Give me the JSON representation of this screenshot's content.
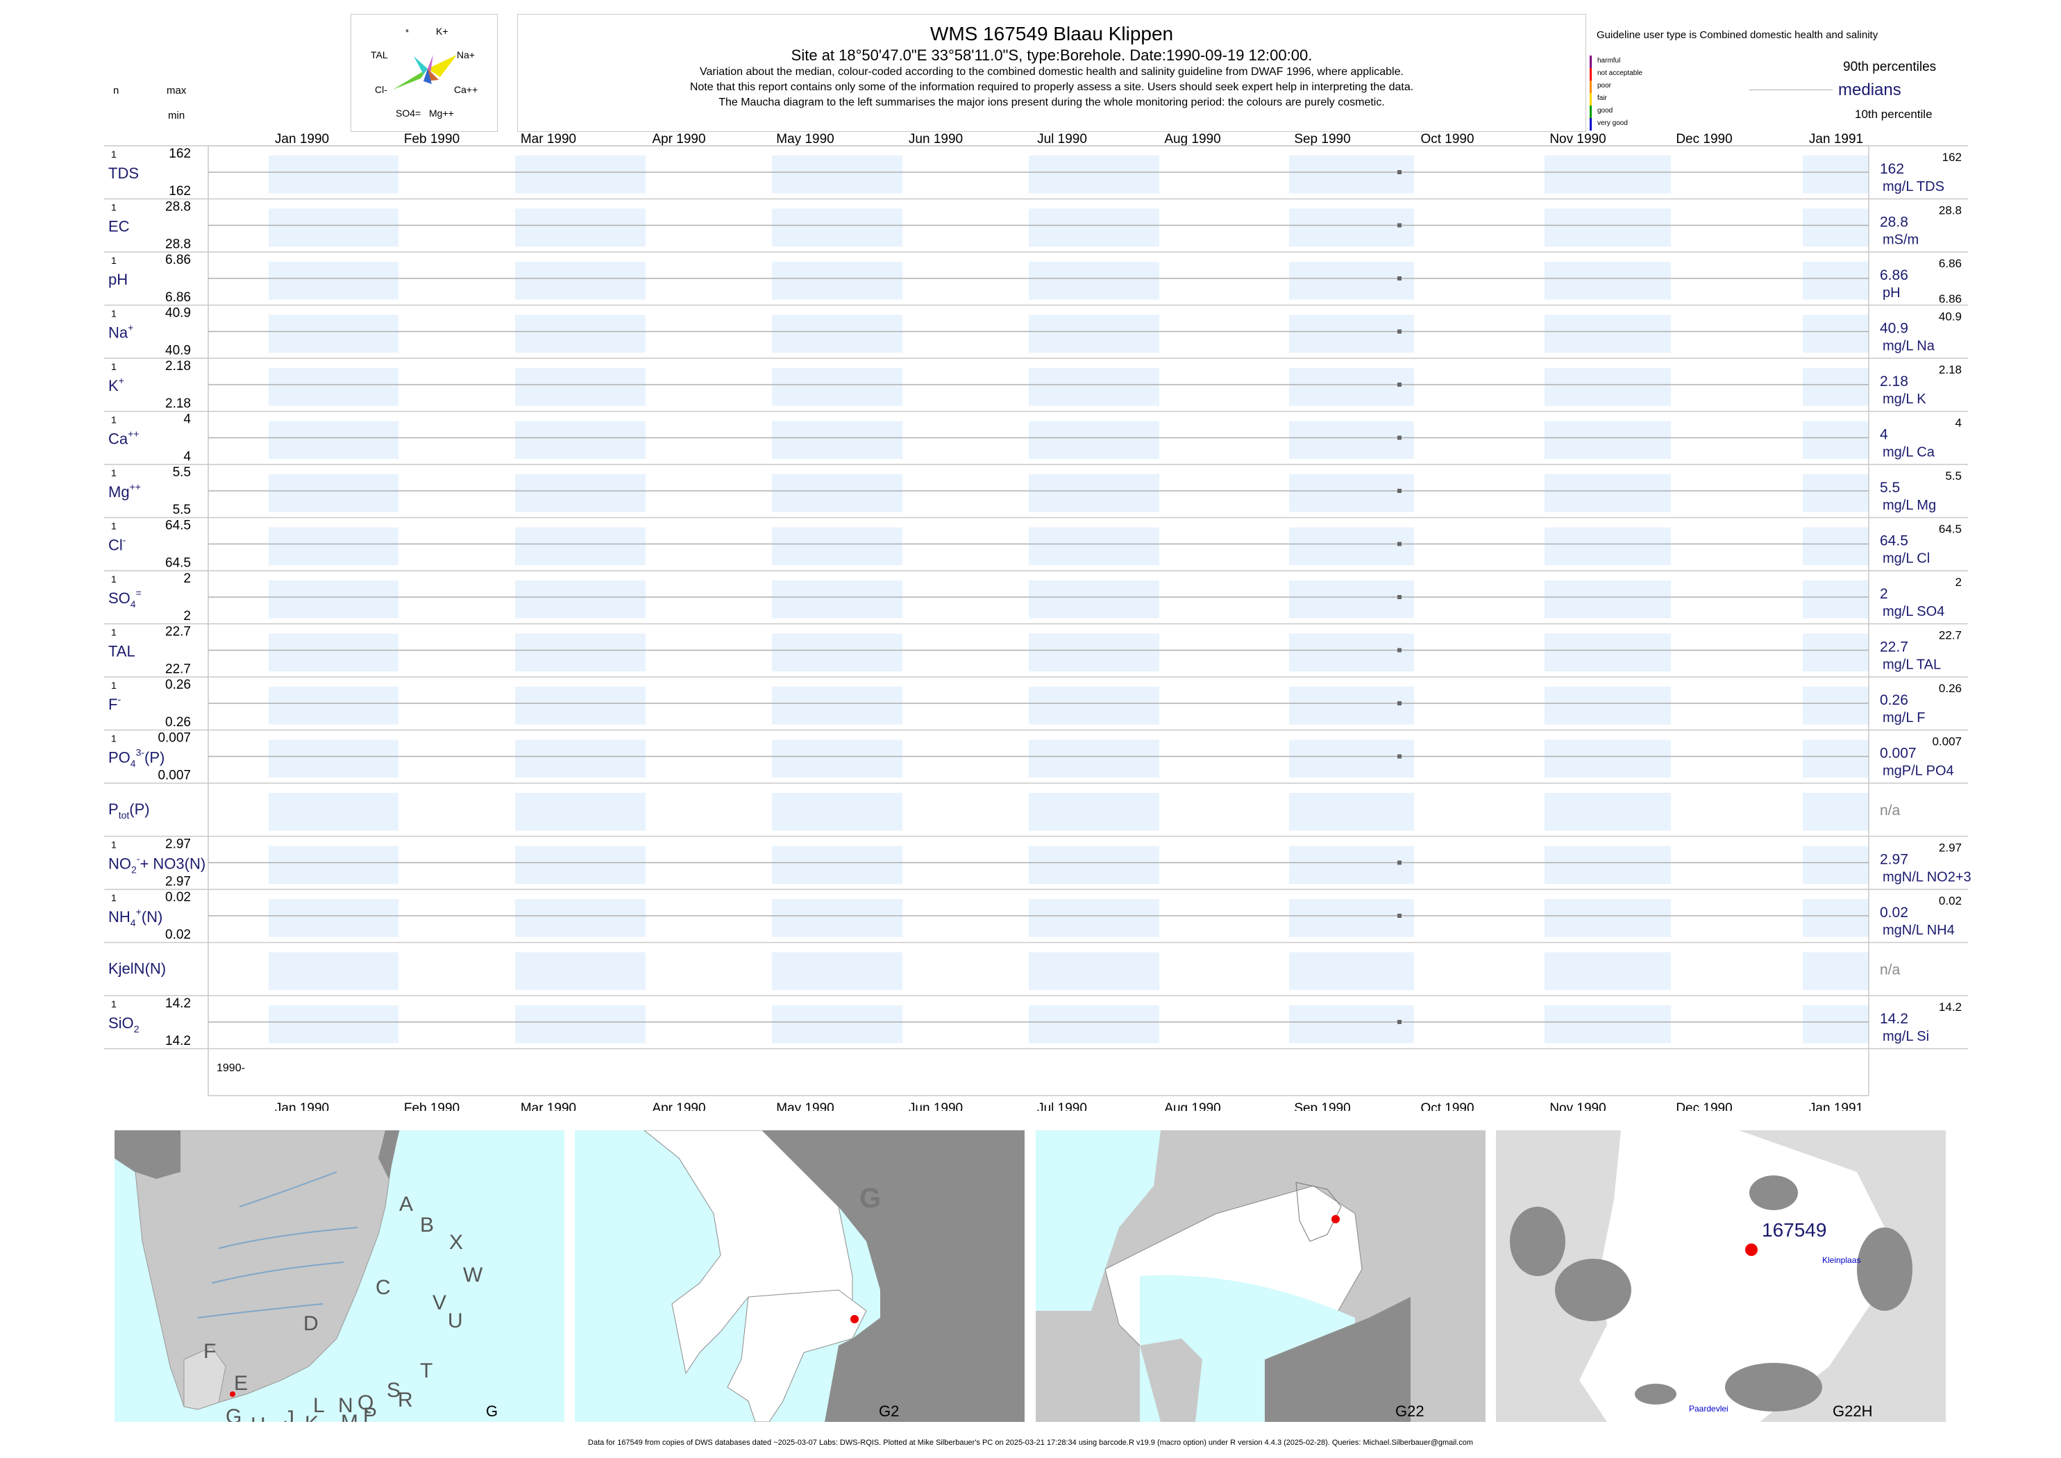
{
  "header": {
    "title": "WMS 167549  Blaau Klippen",
    "subtitle": "Site at 18°50'47.0\"E 33°58'11.0\"S, type:Borehole. Date:1990-09-19 12:00:00.",
    "note1": "Variation about the median,  colour-coded according to the combined domestic health and salinity guideline from DWAF 1996, where applicable.",
    "note2": "Note that this report contains only some of the information required to properly assess a site. Users should seek expert help in interpreting the data.",
    "note3": "The Maucha diagram to the left summarises the major ions present during the whole monitoring period: the colours are purely cosmetic."
  },
  "left_header": {
    "n": "n",
    "max": "max",
    "min": "min"
  },
  "maucha": {
    "labels": [
      "*",
      "K+",
      "TAL",
      "Na+",
      "Cl-",
      "Ca++",
      "SO4=",
      "Mg++"
    ],
    "colors": [
      "#f2e600",
      "#66cc33",
      "#33cccc",
      "#cc66cc",
      "#cc6633",
      "#3366cc",
      "#999999",
      "#ff9933"
    ]
  },
  "legend": {
    "guideline": "Guideline user type is Combined domestic health and salinity",
    "classes": [
      {
        "label": "harmful",
        "color": "#800080"
      },
      {
        "label": "not acceptable",
        "color": "#ff0000"
      },
      {
        "label": "poor",
        "color": "#ff8c00"
      },
      {
        "label": "fair",
        "color": "#ffd700"
      },
      {
        "label": "good",
        "color": "#00a000"
      },
      {
        "label": "very good",
        "color": "#0000cd"
      }
    ],
    "p90": "90th percentiles",
    "medians": "medians",
    "p10": "10th percentile"
  },
  "chart_data": {
    "type": "scatter",
    "x_axis_type": "date",
    "x_range": [
      "1989-12-25",
      "1991-01-15"
    ],
    "x_ticks": [
      "Jan 1990",
      "Feb 1990",
      "Mar 1990",
      "Apr 1990",
      "May 1990",
      "Jun 1990",
      "Jul 1990",
      "Aug 1990",
      "Sep 1990",
      "Oct 1990",
      "Nov 1990",
      "Dec 1990",
      "Jan 1991"
    ],
    "sample_date": "1990-09-19",
    "year_label": "1990-",
    "series": [
      {
        "label": "TDS",
        "n": "1",
        "max": "162",
        "min": "162",
        "value": 162,
        "right_value": "162",
        "right_unit": "mg/L TDS"
      },
      {
        "label": "EC",
        "n": "1",
        "max": "28.8",
        "min": "28.8",
        "value": 28.8,
        "right_value": "28.8",
        "right_unit": "mS/m"
      },
      {
        "label": "pH",
        "n": "1",
        "max": "6.86",
        "min": "6.86",
        "value": 6.86,
        "right_value": "6.86",
        "right_unit": "pH",
        "right_low": "6.86"
      },
      {
        "label": "Na",
        "sup": "+",
        "n": "1",
        "max": "40.9",
        "min": "40.9",
        "value": 40.9,
        "right_value": "40.9",
        "right_unit": "mg/L Na"
      },
      {
        "label": "K",
        "sup": "+",
        "n": "1",
        "max": "2.18",
        "min": "2.18",
        "value": 2.18,
        "right_value": "2.18",
        "right_unit": "mg/L K"
      },
      {
        "label": "Ca",
        "sup": "++",
        "n": "1",
        "max": "4",
        "min": "4",
        "value": 4,
        "right_value": "4",
        "right_unit": "mg/L Ca"
      },
      {
        "label": "Mg",
        "sup": "++",
        "n": "1",
        "max": "5.5",
        "min": "5.5",
        "value": 5.5,
        "right_value": "5.5",
        "right_unit": "mg/L Mg"
      },
      {
        "label": "Cl",
        "sup": "-",
        "n": "1",
        "max": "64.5",
        "min": "64.5",
        "value": 64.5,
        "right_value": "64.5",
        "right_unit": "mg/L Cl"
      },
      {
        "label": "SO",
        "sub": "4",
        "sup": "=",
        "n": "1",
        "max": "2",
        "min": "2",
        "value": 2,
        "right_value": "2",
        "right_unit": "mg/L SO4"
      },
      {
        "label": "TAL",
        "n": "1",
        "max": "22.7",
        "min": "22.7",
        "value": 22.7,
        "right_value": "22.7",
        "right_unit": "mg/L TAL"
      },
      {
        "label": "F",
        "sup": "-",
        "n": "1",
        "max": "0.26",
        "min": "0.26",
        "value": 0.26,
        "right_value": "0.26",
        "right_unit": "mg/L F"
      },
      {
        "label": "PO",
        "sub": "4",
        "sup": "3-",
        "tail": "(P)",
        "n": "1",
        "max": "0.007",
        "min": "0.007",
        "value": 0.007,
        "right_value": "0.007",
        "right_unit": "mgP/L PO4"
      },
      {
        "label": "P",
        "sub": "tot",
        "tail": "(P)",
        "n": "",
        "max": "",
        "min": "",
        "value": null,
        "right_value": "n/a",
        "right_unit": ""
      },
      {
        "label": "NO",
        "sub": "2",
        "sup": "-",
        "tail": "+ NO3(N)",
        "n": "1",
        "max": "2.97",
        "min": "2.97",
        "value": 2.97,
        "right_value": "2.97",
        "right_unit": "mgN/L NO2+3"
      },
      {
        "label": "NH",
        "sub": "4",
        "sup": "+",
        "tail": "(N)",
        "n": "1",
        "max": "0.02",
        "min": "0.02",
        "value": 0.02,
        "right_value": "0.02",
        "right_unit": "mgN/L NH4"
      },
      {
        "label": "KjelN(N)",
        "n": "",
        "max": "",
        "min": "",
        "value": null,
        "right_value": "n/a",
        "right_unit": ""
      },
      {
        "label": "SiO",
        "sub": "2",
        "n": "1",
        "max": "14.2",
        "min": "14.2",
        "value": 14.2,
        "right_value": "14.2",
        "right_unit": "mg/L Si"
      }
    ]
  },
  "maps": [
    {
      "corner": "G",
      "letters": [
        "A",
        "B",
        "X",
        "W",
        "C",
        "V",
        "U",
        "D",
        "T",
        "F",
        "E",
        "S",
        "R",
        "Q",
        "N",
        "L",
        "P",
        "M",
        "J",
        "K",
        "H",
        "G"
      ]
    },
    {
      "corner": "G2",
      "big": "G"
    },
    {
      "corner": "G22"
    },
    {
      "corner": "G22H",
      "site": "167549",
      "place1": "Kleinplaas",
      "place2": "Paardevlei"
    }
  ],
  "footer": "Data for 167549 from copies of DWS databases dated ~2025-03-07 Labs: DWS-RQIS. Plotted at Mike Silberbauer's PC on 2025-03-21 17:28:34 using barcode.R v19.9 (macro option) under R version 4.4.3 (2025-02-28). Queries: Michael.Silberbauer@gmail.com",
  "colors": {
    "navy": "#1a1a6e",
    "band": "#e8f3fd",
    "sea": "#d4fbfd",
    "land": "#c8c8c8",
    "dark_land": "#8c8c8c",
    "site": "#ee0000"
  }
}
